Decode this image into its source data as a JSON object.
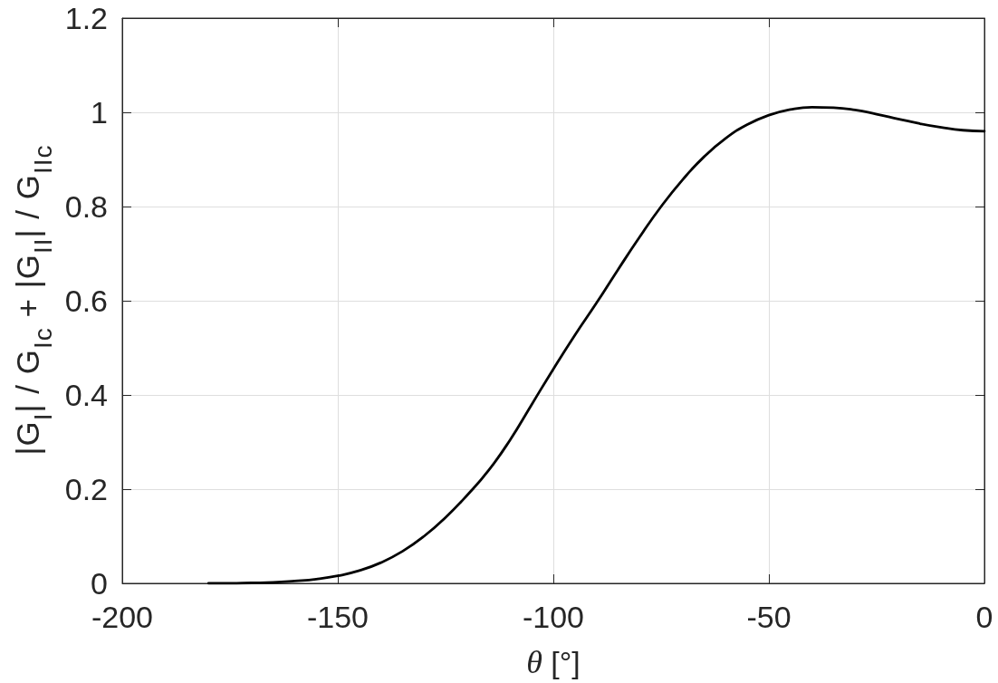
{
  "chart_data": {
    "type": "line",
    "xlabel": "θ [°]",
    "ylabel": "|G$_{I}$| / G$_{Ic}$ + |G$_{II}$| / G$_{IIc}$",
    "x": [
      -180,
      -175,
      -170,
      -165,
      -160,
      -155,
      -150,
      -145,
      -140,
      -135,
      -130,
      -125,
      -120,
      -115,
      -110,
      -105,
      -100,
      -95,
      -90,
      -85,
      -80,
      -75,
      -70,
      -65,
      -60,
      -55,
      -50,
      -45,
      -40,
      -35,
      -30,
      -25,
      -20,
      -15,
      -10,
      -5,
      0
    ],
    "series": [
      {
        "color": "#000000",
        "values": [
          0,
          0,
          0.001,
          0.002,
          0.005,
          0.009,
          0.016,
          0.027,
          0.044,
          0.068,
          0.1,
          0.14,
          0.187,
          0.24,
          0.305,
          0.38,
          0.455,
          0.527,
          0.595,
          0.666,
          0.735,
          0.8,
          0.857,
          0.906,
          0.945,
          0.974,
          0.994,
          1.006,
          1.011,
          1.01,
          1.005,
          0.996,
          0.986,
          0.976,
          0.968,
          0.962,
          0.96
        ]
      }
    ],
    "xlim": [
      -200,
      0
    ],
    "ylim": [
      0,
      1.2
    ],
    "xticks": [
      -200,
      -150,
      -100,
      -50,
      0
    ],
    "yticks": [
      0,
      0.2,
      0.4,
      0.6,
      0.8,
      1,
      1.2
    ],
    "grid": true,
    "marker": "none",
    "line_style": "solid"
  }
}
